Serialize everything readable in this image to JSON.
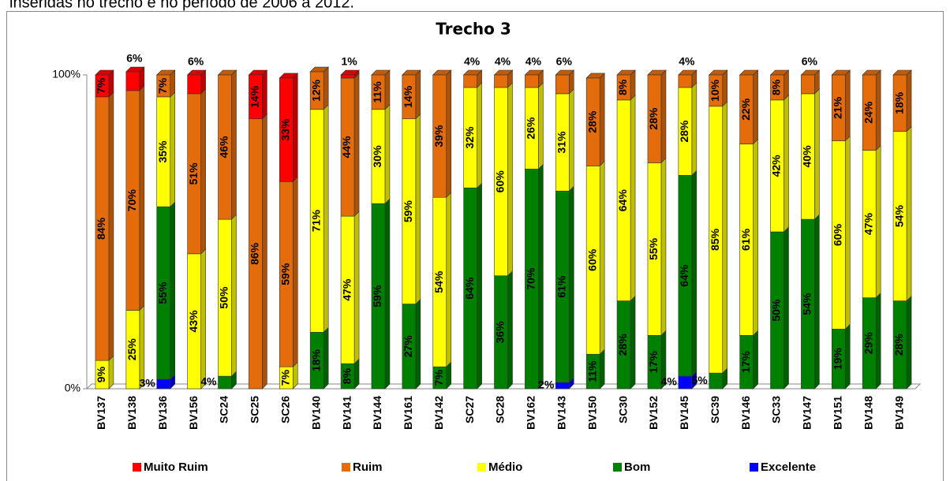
{
  "chart_data": {
    "type": "bar",
    "stacked": true,
    "title": "Trecho 3",
    "caption": "inseridas no trecho e no período de 2006 a 2012.",
    "categories": [
      "BV137",
      "BV138",
      "BV136",
      "BV156",
      "SC24",
      "SC25",
      "SC26",
      "BV140",
      "BV141",
      "BV144",
      "BV161",
      "BV142",
      "SC27",
      "SC28",
      "BV162",
      "BV143",
      "BV150",
      "SC30",
      "BV152",
      "BV145",
      "SC39",
      "BV146",
      "SC33",
      "BV147",
      "BV151",
      "BV148",
      "BV149"
    ],
    "series": [
      {
        "name": "Excelente",
        "color": "#0000ff",
        "values": [
          0,
          0,
          3,
          0,
          0,
          0,
          0,
          0,
          0,
          0,
          0,
          0,
          0,
          0,
          0,
          2,
          0,
          0,
          0,
          4,
          0,
          0,
          0,
          0,
          0,
          0,
          0
        ],
        "value_labels": [
          null,
          null,
          "3%",
          null,
          null,
          null,
          null,
          null,
          null,
          null,
          null,
          null,
          null,
          null,
          null,
          "2%",
          null,
          null,
          null,
          "4%",
          null,
          null,
          null,
          null,
          null,
          null,
          null
        ]
      },
      {
        "name": "Bom",
        "color": "#008000",
        "values": [
          0,
          0,
          55,
          0,
          4,
          0,
          0,
          18,
          8,
          59,
          27,
          7,
          64,
          36,
          70,
          61,
          11,
          28,
          17,
          64,
          5,
          17,
          50,
          54,
          19,
          29,
          28
        ],
        "value_labels": [
          null,
          null,
          "55%",
          null,
          "4%",
          null,
          null,
          "18%",
          "8%",
          "59%",
          "27%",
          "7%",
          "64%",
          "36%",
          "70%",
          "61%",
          "11%",
          "28%",
          "17%",
          "64%",
          "5%",
          "17%",
          "50%",
          "54%",
          "19%",
          "29%",
          "28%"
        ]
      },
      {
        "name": "Médio",
        "color": "#ffff00",
        "values": [
          9,
          25,
          35,
          43,
          50,
          0,
          7,
          71,
          47,
          30,
          59,
          54,
          32,
          60,
          26,
          31,
          60,
          64,
          55,
          28,
          85,
          61,
          42,
          40,
          60,
          47,
          54
        ],
        "value_labels": [
          "9%",
          "25%",
          "35%",
          "43%",
          "50%",
          null,
          "7%",
          "71%",
          "47%",
          "30%",
          "59%",
          "54%",
          "32%",
          "60%",
          "26%",
          "31%",
          "60%",
          "64%",
          "55%",
          "28%",
          "85%",
          "61%",
          "42%",
          "40%",
          "60%",
          "47%",
          "54%"
        ]
      },
      {
        "name": "Ruim",
        "color": "#e46c0a",
        "values": [
          84,
          70,
          7,
          51,
          46,
          86,
          59,
          12,
          44,
          11,
          14,
          39,
          4,
          4,
          4,
          6,
          28,
          8,
          28,
          4,
          10,
          22,
          8,
          6,
          21,
          24,
          18
        ],
        "value_labels": [
          "84%",
          "70%",
          "7%",
          "51%",
          "46%",
          "86%",
          "59%",
          "12%",
          "44%",
          "11%",
          "14%",
          "39%",
          "4%",
          "4%",
          "4%",
          "6%",
          "28%",
          "8%",
          "28%",
          "4%",
          "10%",
          "22%",
          "8%",
          "6%",
          "21%",
          "24%",
          "18%"
        ]
      },
      {
        "name": "Muito Ruim",
        "color": "#ff0000",
        "values": [
          7,
          6,
          0,
          6,
          0,
          14,
          33,
          0,
          1,
          0,
          0,
          0,
          0,
          0,
          0,
          0,
          0,
          0,
          0,
          0,
          0,
          0,
          0,
          0,
          0,
          0,
          0
        ],
        "value_labels": [
          "7%",
          "6%",
          null,
          "6%",
          null,
          "14%",
          "33%",
          null,
          "1%",
          null,
          null,
          null,
          null,
          null,
          null,
          null,
          null,
          null,
          null,
          null,
          null,
          null,
          null,
          null,
          null,
          null,
          null
        ]
      }
    ],
    "ylim": [
      0,
      100
    ],
    "yticks": [
      {
        "value": 0,
        "label": "0%"
      },
      {
        "value": 100,
        "label": "100%"
      }
    ],
    "grid": false,
    "legend": "bottom"
  }
}
